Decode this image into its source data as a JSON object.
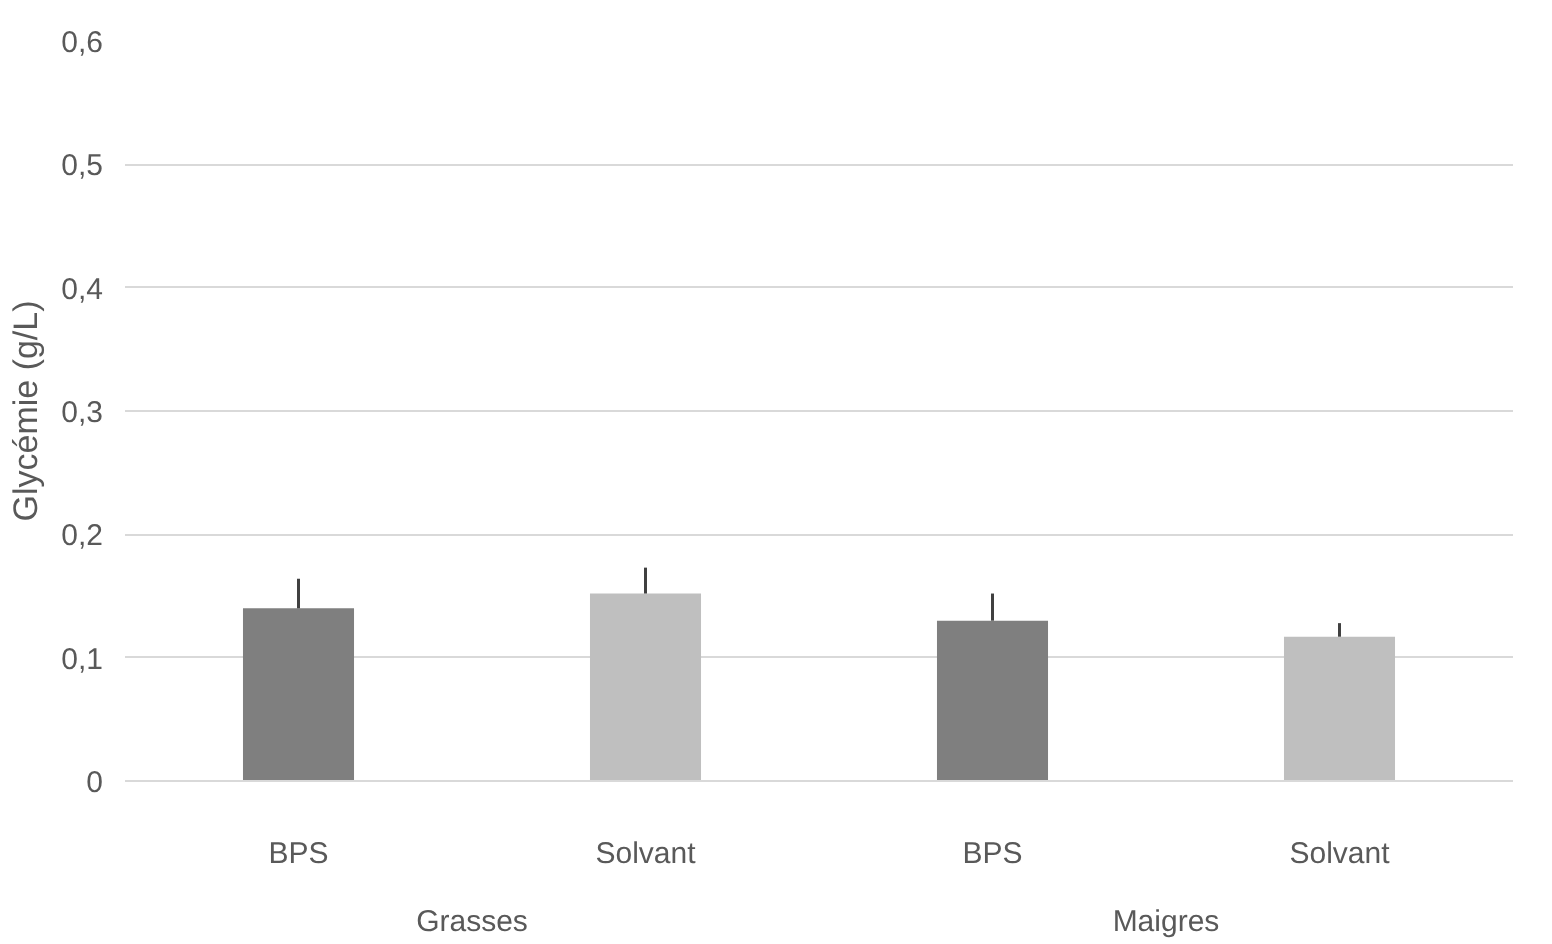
{
  "chart_data": {
    "type": "bar",
    "ylabel": "Glycémie (g/L)",
    "categories": [
      "BPS",
      "Solvant",
      "BPS",
      "Solvant"
    ],
    "values": [
      0.14,
      0.152,
      0.13,
      0.117
    ],
    "colors": [
      "#7f7f7f",
      "#bfbfbf",
      "#7f7f7f",
      "#bfbfbf"
    ],
    "errors": [
      [
        0.14,
        0.164
      ],
      [
        0.152,
        0.173
      ],
      [
        0.13,
        0.152
      ],
      [
        0.117,
        0.128
      ]
    ],
    "annotations": [
      "Grasses",
      "Maigres"
    ],
    "ylim": [
      0,
      0.6
    ],
    "yticks": [
      {
        "value": 0,
        "label": "0"
      },
      {
        "value": 0.1,
        "label": "0,1"
      },
      {
        "value": 0.2,
        "label": "0,2"
      },
      {
        "value": 0.3,
        "label": "0,3"
      },
      {
        "value": 0.4,
        "label": "0,4"
      },
      {
        "value": 0.5,
        "label": "0,5"
      },
      {
        "value": 0.6,
        "label": "0,6"
      }
    ],
    "grid": "y"
  }
}
